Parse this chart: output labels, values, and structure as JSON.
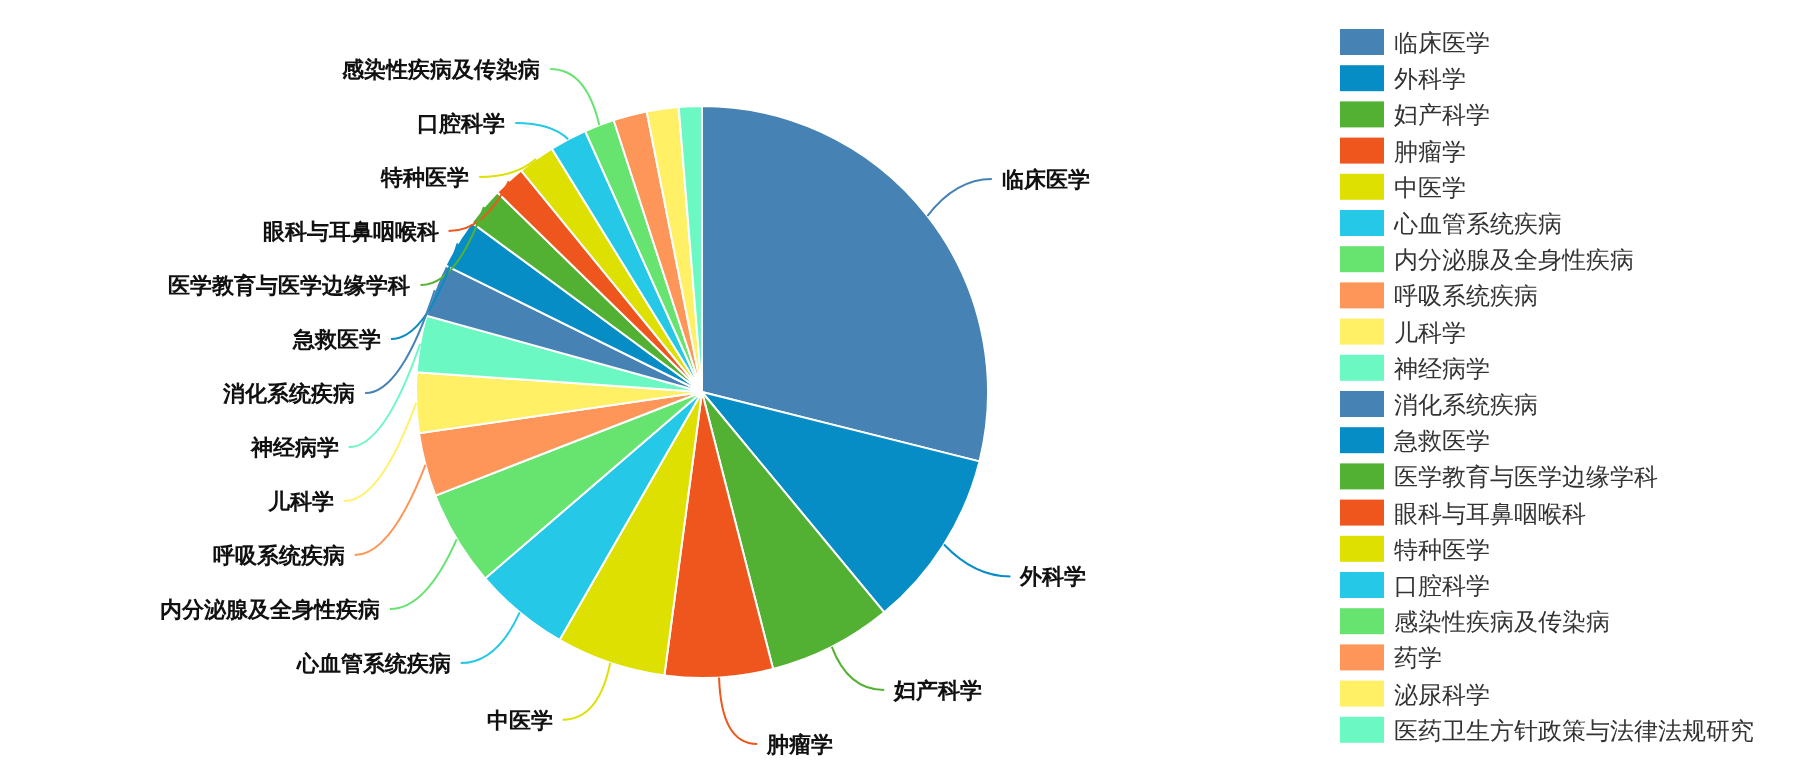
{
  "chart_data": {
    "type": "pie",
    "categories": [
      "临床医学",
      "外科学",
      "妇产科学",
      "肿瘤学",
      "中医学",
      "心血管系统疾病",
      "内分泌腺及全身性疾病",
      "呼吸系统疾病",
      "儿科学",
      "神经病学",
      "消化系统疾病",
      "急救医学",
      "医学教育与医学边缘学科",
      "眼科与耳鼻咽喉科",
      "特种医学",
      "口腔科学",
      "感染性疾病及传染病",
      "药学",
      "泌尿科学",
      "医药卫生方针政策与法律法规研究"
    ],
    "values": [
      28.9,
      10.1,
      7.0,
      6.1,
      6.2,
      5.4,
      5.4,
      3.6,
      3.4,
      3.2,
      3.0,
      2.8,
      2.2,
      1.8,
      2.1,
      2.1,
      1.7,
      1.9,
      1.8,
      1.3
    ],
    "colors": [
      "#4682b4",
      "#078dc6",
      "#52b132",
      "#ef561e",
      "#dde000",
      "#25c8e6",
      "#66e46f",
      "#fe9559",
      "#fff065",
      "#6cf8c3",
      "#4682b4",
      "#078dc6",
      "#52b132",
      "#ef561e",
      "#dde000",
      "#25c8e6",
      "#66e46f",
      "#fe9559",
      "#fff065",
      "#6cf8c3"
    ],
    "legend": "right"
  }
}
